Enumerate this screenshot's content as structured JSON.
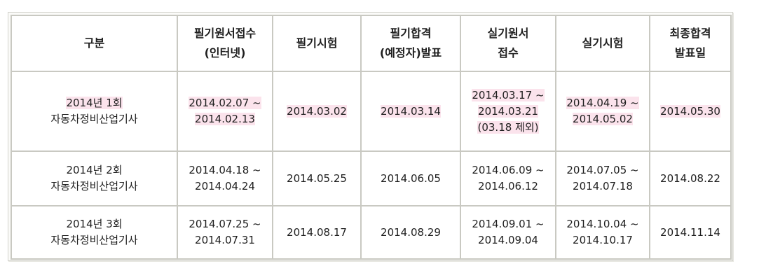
{
  "table": {
    "columns": [
      [
        "구분"
      ],
      [
        "필기원서접수",
        "(인터넷)"
      ],
      [
        "필기시험"
      ],
      [
        "필기합격",
        "(예정자)발표"
      ],
      [
        "실기원서",
        "접수"
      ],
      [
        "실기시험"
      ],
      [
        "최종합격",
        "발표일"
      ]
    ],
    "rows": [
      [
        [
          "2014년 1회",
          "자동차정비산업기사"
        ],
        [
          "2014.02.07 ~",
          "2014.02.13"
        ],
        [
          "2014.03.02"
        ],
        [
          "2014.03.14"
        ],
        [
          "2014.03.17 ~",
          "2014.03.21",
          "(03.18 제외)"
        ],
        [
          "2014.04.19 ~",
          "2014.05.02"
        ],
        [
          "2014.05.30"
        ]
      ],
      [
        [
          "2014년 2회",
          "자동차정비산업기사"
        ],
        [
          "2014.04.18 ~",
          "2014.04.24"
        ],
        [
          "2014.05.25"
        ],
        [
          "2014.06.05"
        ],
        [
          "2014.06.09 ~",
          "2014.06.12"
        ],
        [
          "2014.07.05 ~",
          "2014.07.18"
        ],
        [
          "2014.08.22"
        ]
      ],
      [
        [
          "2014년 3회",
          "자동차정비산업기사"
        ],
        [
          "2014.07.25 ~",
          "2014.07.31"
        ],
        [
          "2014.08.17"
        ],
        [
          "2014.08.29"
        ],
        [
          "2014.09.01 ~",
          "2014.09.04"
        ],
        [
          "2014.10.04 ~",
          "2014.10.17"
        ],
        [
          "2014.11.14"
        ]
      ]
    ],
    "highlight_color": "#fbe3ec",
    "border_color": "#c9c9c2"
  }
}
